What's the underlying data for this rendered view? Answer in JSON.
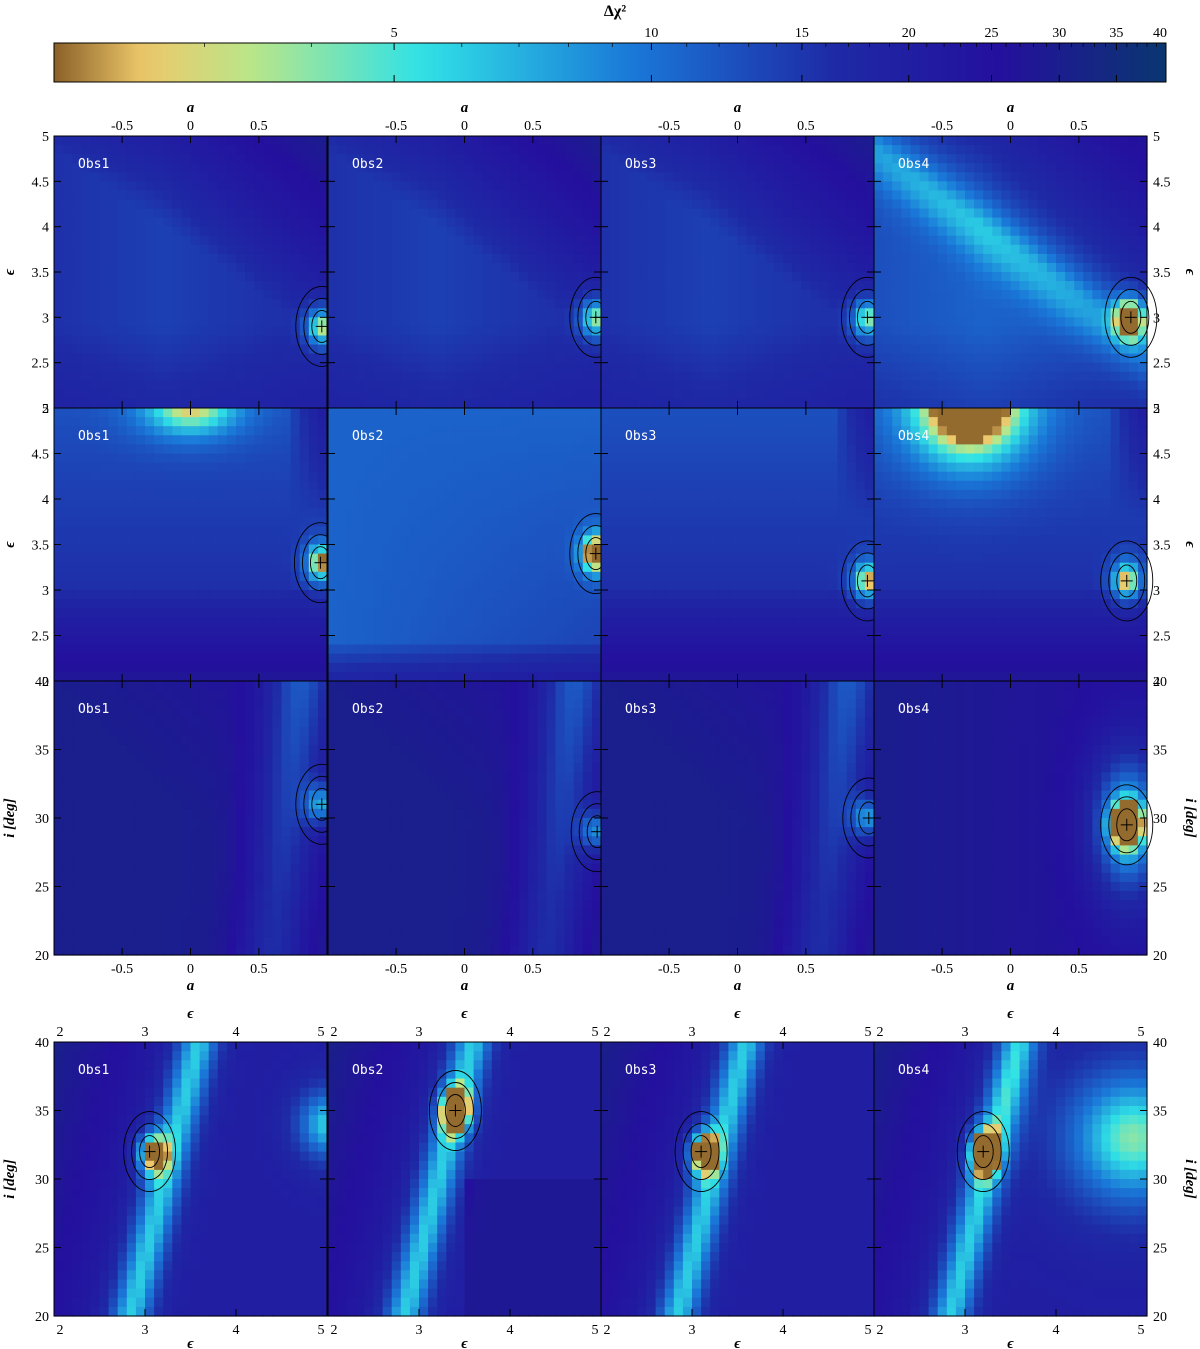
{
  "colorbar": {
    "label": "Δχ²",
    "ticks": [
      "5",
      "10",
      "15",
      "20",
      "25",
      "30",
      "35",
      "40"
    ],
    "tick_values": [
      5,
      10,
      15,
      20,
      25,
      30,
      35,
      40
    ],
    "range": [
      2,
      40
    ],
    "colors": [
      "#8a6028",
      "#eec86a",
      "#b8e68a",
      "#30e2e6",
      "#1a78d8",
      "#1e2aa6",
      "#24109e",
      "#0a3670"
    ]
  },
  "panel_labels": [
    "Obs1",
    "Obs2",
    "Obs3",
    "Obs4"
  ],
  "axis_labels": {
    "a": "a",
    "epsilon": "ϵ",
    "incl": "i [deg]"
  },
  "tick_labels": {
    "a": [
      "-0.5",
      "0",
      "0.5"
    ],
    "epsilon_y": [
      "2",
      "2.5",
      "3",
      "3.5",
      "4",
      "4.5",
      "5"
    ],
    "incl_y": [
      "20",
      "25",
      "30",
      "35",
      "40"
    ],
    "epsilon_x": [
      "2",
      "3",
      "4",
      "5"
    ]
  },
  "chart_data": [
    {
      "type": "heatmap",
      "row": 1,
      "x_label": "a",
      "y_label": "ϵ",
      "x_range": [
        -0.998,
        0.998
      ],
      "y_range": [
        2,
        5
      ],
      "panels": [
        {
          "name": "Obs1",
          "best_fit": {
            "x": 0.96,
            "y": 2.9
          }
        },
        {
          "name": "Obs2",
          "best_fit": {
            "x": 0.96,
            "y": 3.0
          }
        },
        {
          "name": "Obs3",
          "best_fit": {
            "x": 0.95,
            "y": 3.0
          }
        },
        {
          "name": "Obs4",
          "best_fit": {
            "x": 0.88,
            "y": 3.0
          }
        }
      ]
    },
    {
      "type": "heatmap",
      "row": 2,
      "x_label": "a",
      "y_label": "ϵ",
      "x_range": [
        -0.998,
        0.998
      ],
      "y_range": [
        2,
        5
      ],
      "panels": [
        {
          "name": "Obs1",
          "best_fit": {
            "x": 0.95,
            "y": 3.3
          }
        },
        {
          "name": "Obs2",
          "best_fit": {
            "x": 0.96,
            "y": 3.4
          }
        },
        {
          "name": "Obs3",
          "best_fit": {
            "x": 0.95,
            "y": 3.1
          }
        },
        {
          "name": "Obs4",
          "best_fit": {
            "x": 0.85,
            "y": 3.1
          }
        }
      ]
    },
    {
      "type": "heatmap",
      "row": 3,
      "x_label": "a",
      "y_label": "i [deg]",
      "x_range": [
        -0.998,
        0.998
      ],
      "y_range": [
        20,
        40
      ],
      "panels": [
        {
          "name": "Obs1",
          "best_fit": {
            "x": 0.96,
            "y": 31
          }
        },
        {
          "name": "Obs2",
          "best_fit": {
            "x": 0.97,
            "y": 29
          }
        },
        {
          "name": "Obs3",
          "best_fit": {
            "x": 0.96,
            "y": 30
          }
        },
        {
          "name": "Obs4",
          "best_fit": {
            "x": 0.85,
            "y": 29.5
          }
        }
      ]
    },
    {
      "type": "heatmap",
      "row": 4,
      "x_label": "ϵ",
      "y_label": "i [deg]",
      "x_range": [
        2,
        5
      ],
      "y_range": [
        20,
        40
      ],
      "panels": [
        {
          "name": "Obs1",
          "best_fit": {
            "x": 3.05,
            "y": 32
          }
        },
        {
          "name": "Obs2",
          "best_fit": {
            "x": 3.4,
            "y": 35
          }
        },
        {
          "name": "Obs3",
          "best_fit": {
            "x": 3.1,
            "y": 32
          }
        },
        {
          "name": "Obs4",
          "best_fit": {
            "x": 3.2,
            "y": 32
          }
        }
      ]
    }
  ]
}
